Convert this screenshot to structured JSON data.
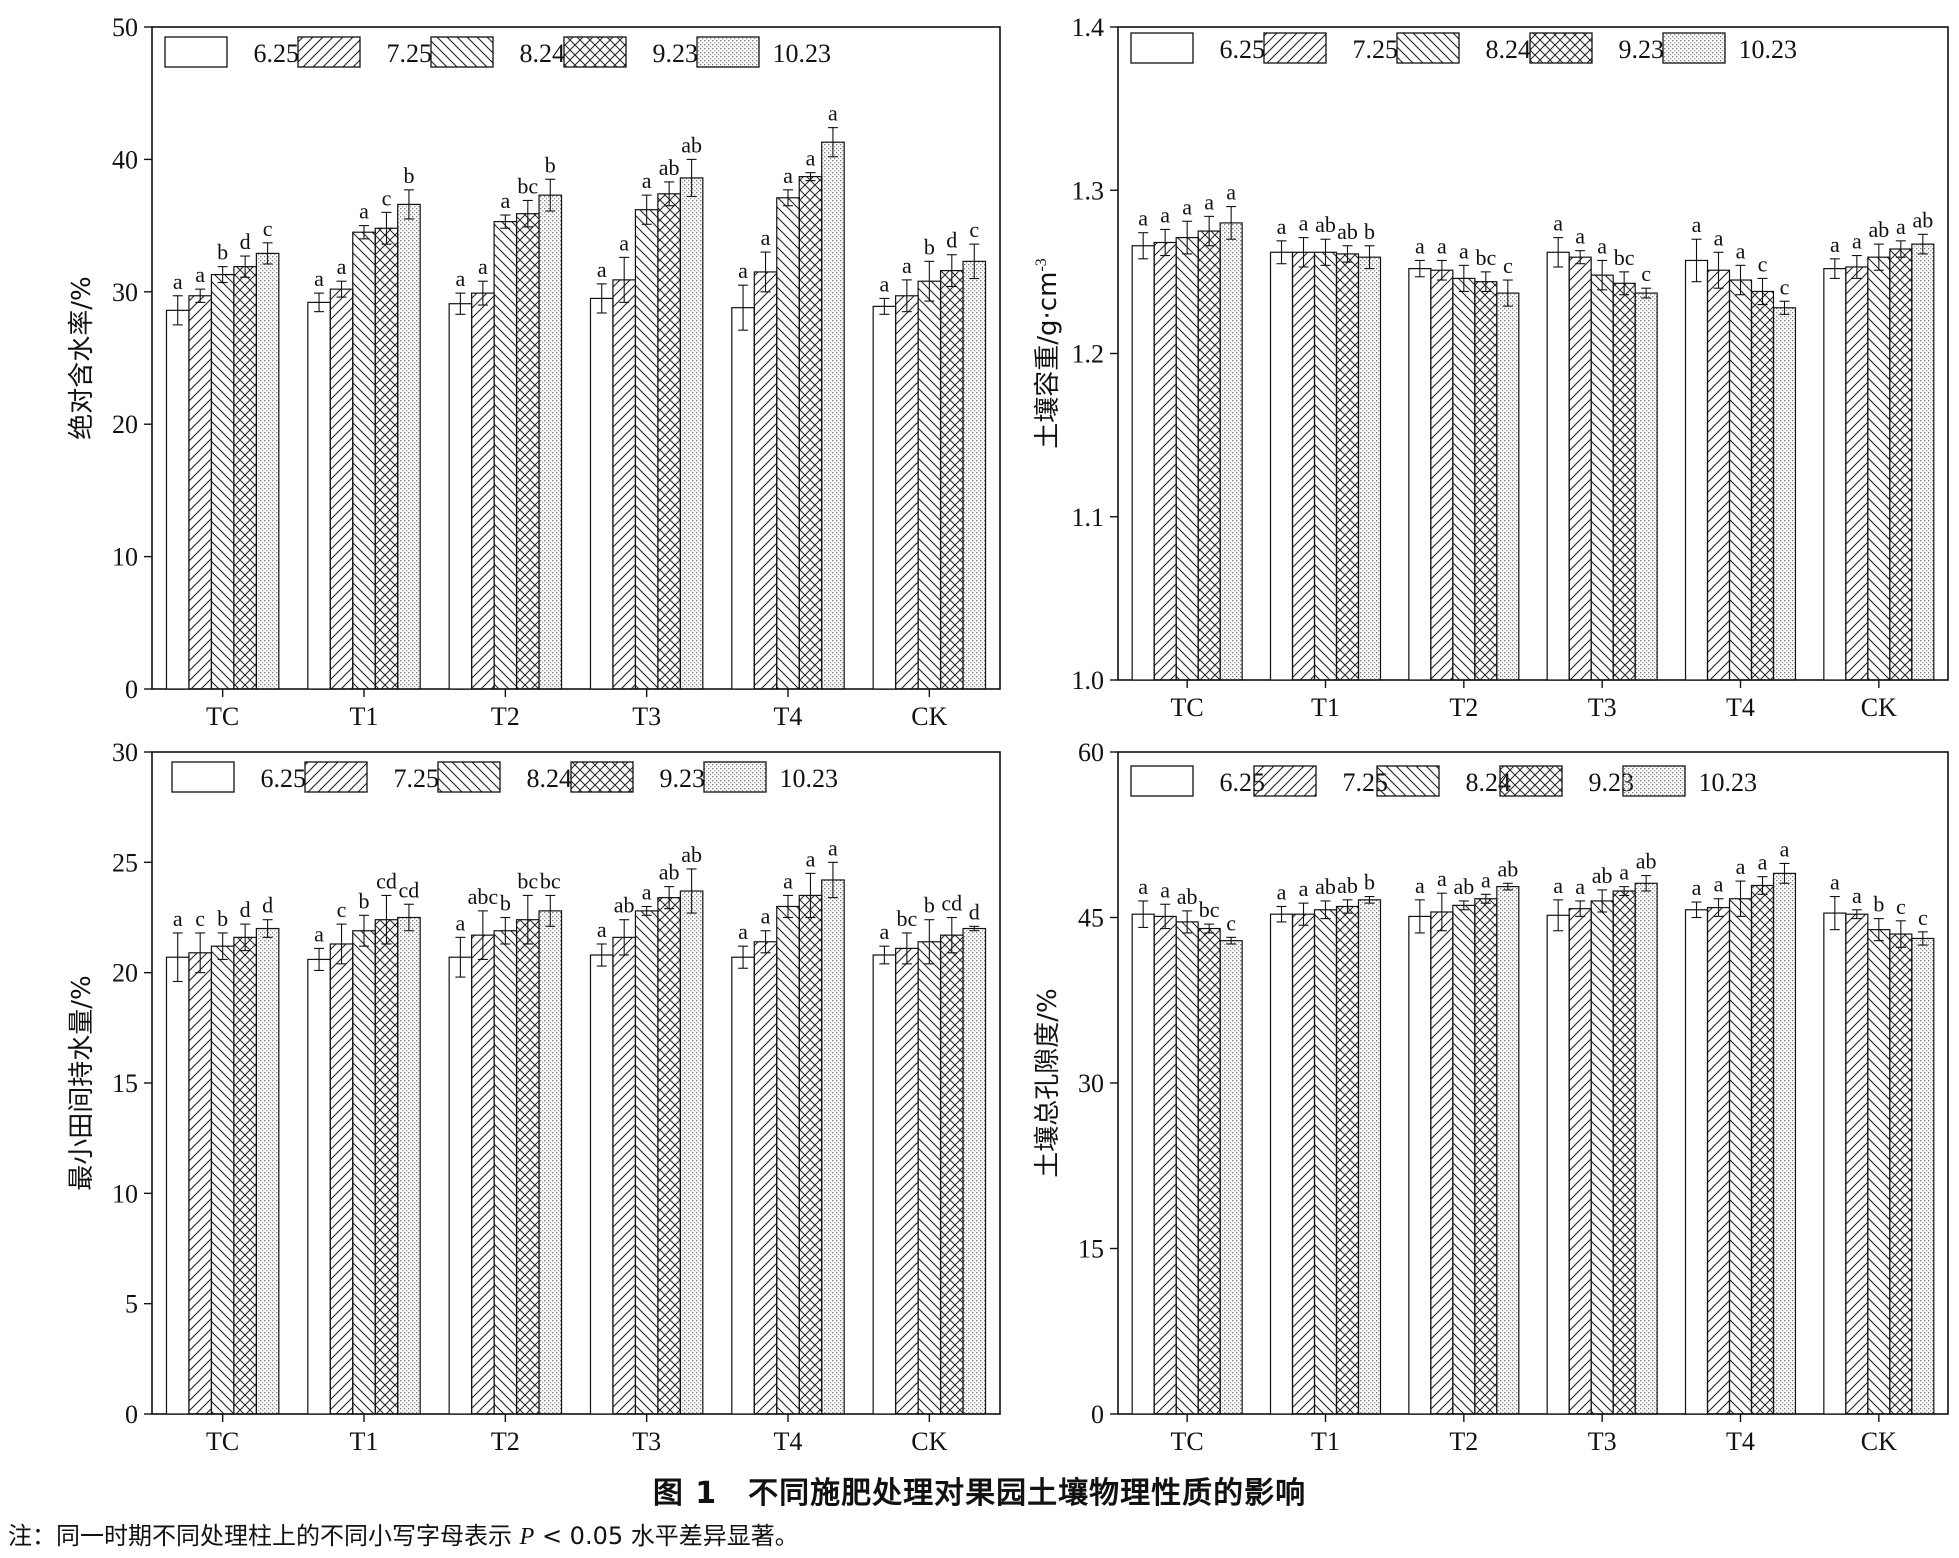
{
  "figure": {
    "caption": "图 1　不同施肥处理对果园土壤物理性质的影响",
    "note_prefix": "注：同一时期不同处理柱上的不同小写字母表示 ",
    "note_p": "P",
    "note_suffix": " < 0.05 水平差异显著。"
  },
  "patterns": {
    "6.25": "blank",
    "7.25": "forward-diagonal",
    "8.24": "backward-diagonal",
    "9.23": "crosshatch",
    "10.23": "dots"
  },
  "chart_data": [
    {
      "type": "bar",
      "title": "",
      "xlabel": "",
      "ylabel": "绝对含水率/%",
      "ylim": [
        0,
        50
      ],
      "yticks": [
        "0",
        "10",
        "20",
        "30",
        "40",
        "50"
      ],
      "categories": [
        "TC",
        "T1",
        "T2",
        "T3",
        "T4",
        "CK"
      ],
      "legend": "top-left",
      "series": [
        {
          "name": "6.25",
          "values": [
            28.6,
            29.2,
            29.1,
            29.5,
            28.8,
            28.9
          ],
          "errors": [
            1.1,
            0.7,
            0.8,
            1.1,
            1.7,
            0.6
          ],
          "letters": [
            "a",
            "a",
            "a",
            "a",
            "a",
            "a"
          ]
        },
        {
          "name": "7.25",
          "values": [
            29.7,
            30.2,
            29.9,
            30.9,
            31.5,
            29.7
          ],
          "errors": [
            0.5,
            0.6,
            0.9,
            1.7,
            1.5,
            1.2
          ],
          "letters": [
            "a",
            "a",
            "a",
            "a",
            "a",
            "a"
          ]
        },
        {
          "name": "8.24",
          "values": [
            31.3,
            34.5,
            35.3,
            36.2,
            37.1,
            30.8
          ],
          "errors": [
            0.6,
            0.5,
            0.5,
            1.1,
            0.6,
            1.5
          ],
          "letters": [
            "b",
            "a",
            "a",
            "a",
            "a",
            "b"
          ]
        },
        {
          "name": "9.23",
          "values": [
            31.9,
            34.8,
            35.9,
            37.4,
            38.7,
            31.6
          ],
          "errors": [
            0.8,
            1.2,
            1.0,
            0.9,
            0.3,
            1.2
          ],
          "letters": [
            "d",
            "c",
            "bc",
            "ab",
            "a",
            "d"
          ]
        },
        {
          "name": "10.23",
          "values": [
            32.9,
            36.6,
            37.3,
            38.6,
            41.3,
            32.3
          ],
          "errors": [
            0.8,
            1.1,
            1.2,
            1.4,
            1.1,
            1.3
          ],
          "letters": [
            "c",
            "b",
            "b",
            "ab",
            "a",
            "c"
          ]
        }
      ]
    },
    {
      "type": "bar",
      "title": "",
      "xlabel": "",
      "ylabel": "土壤容重/g·cm",
      "ylabel_sup": "-3",
      "ylim": [
        1.0,
        1.4
      ],
      "yticks": [
        "1.0",
        "1.1",
        "1.2",
        "1.3",
        "1.4"
      ],
      "categories": [
        "TC",
        "T1",
        "T2",
        "T3",
        "T4",
        "CK"
      ],
      "legend": "top-left",
      "series": [
        {
          "name": "6.25",
          "values": [
            1.266,
            1.262,
            1.252,
            1.262,
            1.257,
            1.252
          ],
          "errors": [
            0.008,
            0.007,
            0.005,
            0.009,
            0.013,
            0.006
          ],
          "letters": [
            "a",
            "a",
            "a",
            "a",
            "a",
            "a"
          ]
        },
        {
          "name": "7.25",
          "values": [
            1.268,
            1.262,
            1.251,
            1.259,
            1.251,
            1.253
          ],
          "errors": [
            0.008,
            0.009,
            0.006,
            0.004,
            0.011,
            0.007
          ],
          "letters": [
            "a",
            "a",
            "a",
            "a",
            "a",
            "a"
          ]
        },
        {
          "name": "8.24",
          "values": [
            1.271,
            1.262,
            1.246,
            1.248,
            1.245,
            1.259
          ],
          "errors": [
            0.01,
            0.008,
            0.008,
            0.009,
            0.009,
            0.008
          ],
          "letters": [
            "a",
            "ab",
            "a",
            "a",
            "a",
            "ab"
          ]
        },
        {
          "name": "9.23",
          "values": [
            1.275,
            1.261,
            1.244,
            1.243,
            1.238,
            1.264
          ],
          "errors": [
            0.009,
            0.005,
            0.006,
            0.007,
            0.008,
            0.005
          ],
          "letters": [
            "a",
            "ab",
            "bc",
            "bc",
            "c",
            "a"
          ]
        },
        {
          "name": "10.23",
          "values": [
            1.28,
            1.259,
            1.237,
            1.237,
            1.228,
            1.267
          ],
          "errors": [
            0.01,
            0.007,
            0.008,
            0.003,
            0.004,
            0.006
          ],
          "letters": [
            "a",
            "b",
            "c",
            "c",
            "c",
            "ab"
          ]
        }
      ]
    },
    {
      "type": "bar",
      "title": "",
      "xlabel": "",
      "ylabel": "最小田间持水量/%",
      "ylim": [
        0,
        30
      ],
      "yticks": [
        "0",
        "5",
        "10",
        "15",
        "20",
        "25",
        "30"
      ],
      "categories": [
        "TC",
        "T1",
        "T2",
        "T3",
        "T4",
        "CK"
      ],
      "legend": "top-left",
      "series": [
        {
          "name": "6.25",
          "values": [
            20.7,
            20.6,
            20.7,
            20.8,
            20.7,
            20.8
          ],
          "errors": [
            1.1,
            0.5,
            0.9,
            0.5,
            0.5,
            0.4
          ],
          "letters": [
            "a",
            "a",
            "a",
            "a",
            "a",
            "a"
          ]
        },
        {
          "name": "7.25",
          "values": [
            20.9,
            21.3,
            21.7,
            21.6,
            21.4,
            21.1
          ],
          "errors": [
            0.9,
            0.9,
            1.1,
            0.8,
            0.5,
            0.7
          ],
          "letters": [
            "c",
            "c",
            "abc",
            "ab",
            "a",
            "bc"
          ]
        },
        {
          "name": "8.24",
          "values": [
            21.2,
            21.9,
            21.9,
            22.8,
            23.0,
            21.4
          ],
          "errors": [
            0.6,
            0.7,
            0.6,
            0.2,
            0.5,
            1.0
          ],
          "letters": [
            "b",
            "b",
            "b",
            "a",
            "a",
            "b"
          ]
        },
        {
          "name": "9.23",
          "values": [
            21.6,
            22.4,
            22.4,
            23.4,
            23.5,
            21.7
          ],
          "errors": [
            0.6,
            1.1,
            1.1,
            0.5,
            1.0,
            0.8
          ],
          "letters": [
            "d",
            "cd",
            "bc",
            "ab",
            "a",
            "cd"
          ]
        },
        {
          "name": "10.23",
          "values": [
            22.0,
            22.5,
            22.8,
            23.7,
            24.2,
            22.0
          ],
          "errors": [
            0.4,
            0.6,
            0.7,
            1.0,
            0.8,
            0.1
          ],
          "letters": [
            "d",
            "cd",
            "bc",
            "ab",
            "a",
            "d"
          ]
        }
      ]
    },
    {
      "type": "bar",
      "title": "",
      "xlabel": "",
      "ylabel": "土壤总孔隙度/%",
      "ylim": [
        0,
        60
      ],
      "yticks": [
        "0",
        "15",
        "30",
        "45",
        "60"
      ],
      "categories": [
        "TC",
        "T1",
        "T2",
        "T3",
        "T4",
        "CK"
      ],
      "legend": "top-left",
      "series": [
        {
          "name": "6.25",
          "values": [
            45.3,
            45.3,
            45.1,
            45.2,
            45.7,
            45.4
          ],
          "errors": [
            1.2,
            0.7,
            1.5,
            1.4,
            0.7,
            1.5
          ],
          "letters": [
            "a",
            "a",
            "a",
            "a",
            "a",
            "a"
          ]
        },
        {
          "name": "7.25",
          "values": [
            45.1,
            45.3,
            45.5,
            45.8,
            45.9,
            45.3
          ],
          "errors": [
            1.1,
            1.0,
            1.7,
            0.7,
            0.8,
            0.4
          ],
          "letters": [
            "a",
            "a",
            "a",
            "a",
            "a",
            "a"
          ]
        },
        {
          "name": "8.24",
          "values": [
            44.6,
            45.7,
            46.1,
            46.5,
            46.7,
            43.9
          ],
          "errors": [
            1.0,
            0.8,
            0.4,
            1.0,
            1.6,
            1.0
          ],
          "letters": [
            "ab",
            "ab",
            "ab",
            "ab",
            "a",
            "b"
          ]
        },
        {
          "name": "9.23",
          "values": [
            44.0,
            46.0,
            46.7,
            47.4,
            47.9,
            43.5
          ],
          "errors": [
            0.4,
            0.6,
            0.4,
            0.4,
            0.8,
            1.2
          ],
          "letters": [
            "bc",
            "ab",
            "a",
            "a",
            "a",
            "c"
          ]
        },
        {
          "name": "10.23",
          "values": [
            42.9,
            46.6,
            47.8,
            48.1,
            49.0,
            43.1
          ],
          "errors": [
            0.3,
            0.3,
            0.3,
            0.7,
            0.9,
            0.6
          ],
          "letters": [
            "c",
            "b",
            "ab",
            "ab",
            "a",
            "c"
          ]
        }
      ]
    }
  ]
}
